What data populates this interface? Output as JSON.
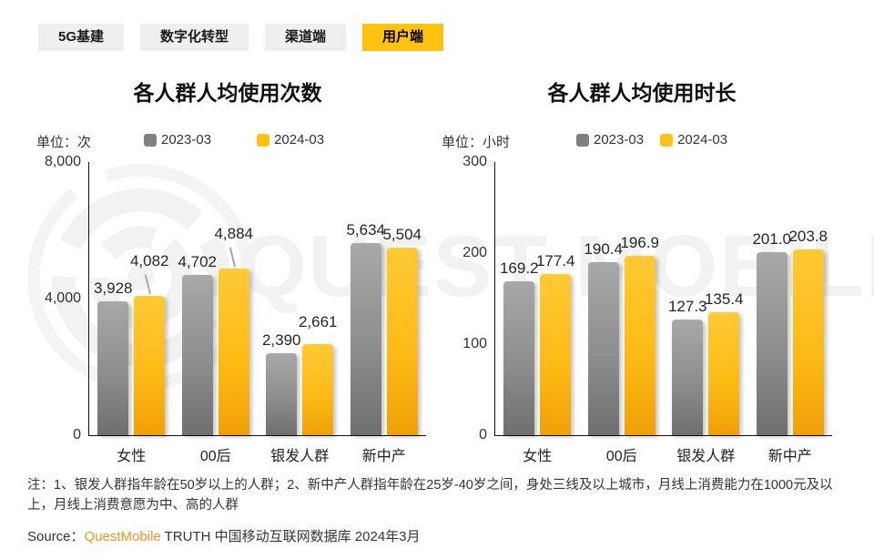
{
  "tabs": [
    {
      "label": "5G基建",
      "active": false
    },
    {
      "label": "数字化转型",
      "active": false
    },
    {
      "label": "渠道端",
      "active": false
    },
    {
      "label": "用户端",
      "active": true
    }
  ],
  "watermark": {
    "text": "QUEST MOBILE"
  },
  "chart_data": [
    {
      "type": "bar",
      "title": "各人群人均使用次数",
      "unit_label": "单位：次",
      "categories": [
        "女性",
        "00后",
        "银发人群",
        "新中产"
      ],
      "series": [
        {
          "name": "2023-03",
          "color": "#808080",
          "values": [
            3928,
            4702,
            2390,
            5634
          ],
          "labels": [
            "3,928",
            "4,702",
            "2,390",
            "5,634"
          ]
        },
        {
          "name": "2024-03",
          "color": "#FFC112",
          "values": [
            4082,
            4884,
            2661,
            5504
          ],
          "labels": [
            "4,082",
            "4,884",
            "2,661",
            "5,504"
          ]
        }
      ],
      "ylim": [
        0,
        8000
      ],
      "yticks": [
        {
          "value": 0,
          "label": "0"
        },
        {
          "value": 4000,
          "label": "4,000"
        },
        {
          "value": 8000,
          "label": "8,000"
        }
      ],
      "legend_position": "top",
      "grid": false
    },
    {
      "type": "bar",
      "title": "各人群人均使用时长",
      "unit_label": "单位：小时",
      "categories": [
        "女性",
        "00后",
        "银发人群",
        "新中产"
      ],
      "series": [
        {
          "name": "2023-03",
          "color": "#808080",
          "values": [
            169.2,
            190.4,
            127.3,
            201.0
          ],
          "labels": [
            "169.2",
            "190.4",
            "127.3",
            "201.0"
          ]
        },
        {
          "name": "2024-03",
          "color": "#FFC112",
          "values": [
            177.4,
            196.9,
            135.4,
            203.8
          ],
          "labels": [
            "177.4",
            "196.9",
            "135.4",
            "203.8"
          ]
        }
      ],
      "ylim": [
        0,
        300
      ],
      "yticks": [
        {
          "value": 0,
          "label": "0"
        },
        {
          "value": 100,
          "label": "100"
        },
        {
          "value": 200,
          "label": "200"
        },
        {
          "value": 300,
          "label": "300"
        }
      ],
      "legend_position": "top",
      "grid": false
    }
  ],
  "footer": {
    "note": "注：1、银发人群指年龄在50岁以上的人群；2、新中产人群指年龄在25岁-40岁之间，身处三线及以上城市，月线上消费能力在1000元及以上，月线上消费意愿为中、高的人群",
    "source_label": "Source：",
    "source_brand": "QuestMobile",
    "source_rest": " TRUTH 中国移动互联网数据库 2024年3月"
  },
  "colors": {
    "accent_yellow": "#FFC20E",
    "legend_gray": "#808080",
    "legend_yellow": "#FFC112",
    "brand_orange": "#F7941E"
  }
}
